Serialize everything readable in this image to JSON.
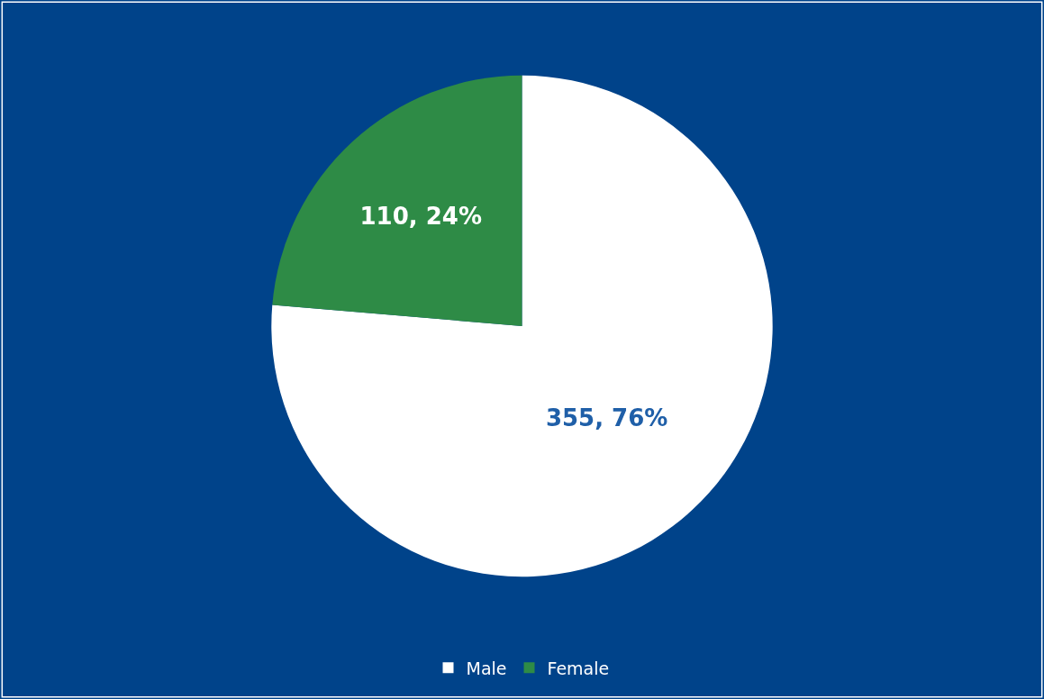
{
  "chart_data": {
    "type": "pie",
    "categories": [
      "Male",
      "Female"
    ],
    "values": [
      355,
      110
    ],
    "colors": [
      "#ffffff",
      "#2e8b46"
    ],
    "value_labels": [
      "355, 76%",
      "110, 24%"
    ],
    "legend": "bottom"
  }
}
